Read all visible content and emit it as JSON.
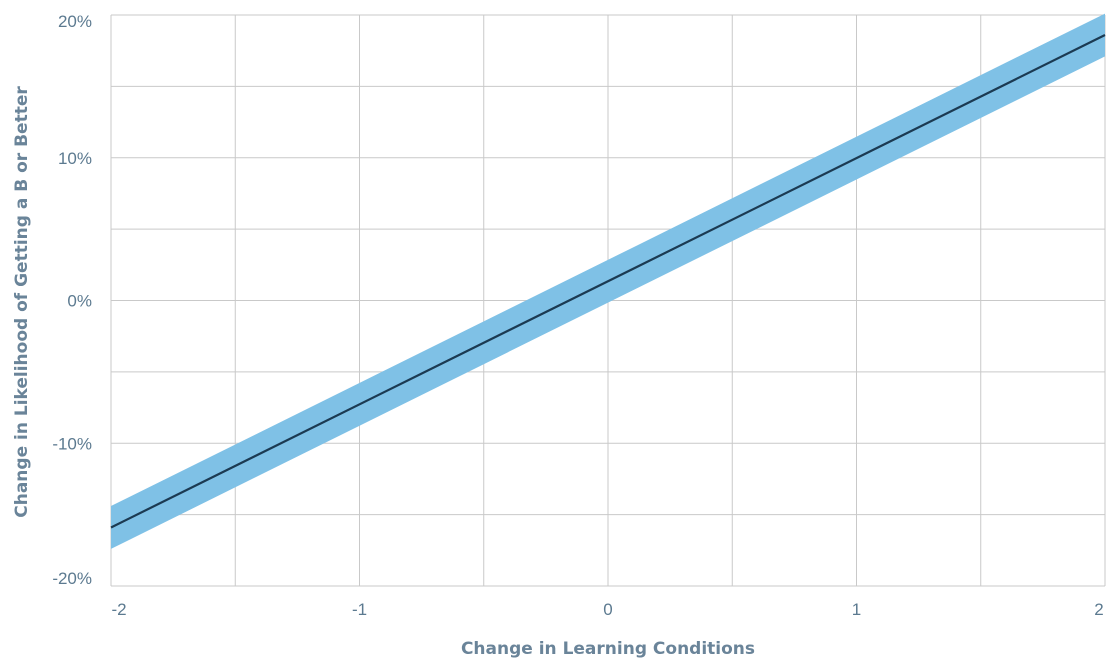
{
  "chart_data": {
    "type": "line",
    "title": "",
    "xlabel": "Change in Learning Conditions",
    "ylabel": "Change in Likelihood of Getting a B or Better",
    "xlim": [
      -2,
      2
    ],
    "ylim": [
      -20,
      20
    ],
    "x_ticks": [
      -2,
      -1.5,
      -1,
      -0.5,
      0,
      0.5,
      1,
      1.5,
      2
    ],
    "x_tick_labels": [
      "-2",
      "",
      "-1",
      "",
      "0",
      "",
      "1",
      "",
      "2"
    ],
    "y_ticks": [
      -20,
      -15,
      -10,
      -5,
      0,
      5,
      10,
      15,
      20
    ],
    "y_tick_labels": [
      "-20%",
      "",
      "-10%",
      "",
      "0%",
      "",
      "10%",
      "",
      "20%"
    ],
    "grid": true,
    "series": [
      {
        "x": [
          -2,
          2
        ],
        "y": [
          -15.9,
          18.6
        ],
        "ci_lower": [
          -17.4,
          17.1
        ],
        "ci_upper": [
          -14.4,
          20.1
        ]
      }
    ],
    "colors": {
      "line": "#1b3a52",
      "band": "#7fc1e6",
      "grid": "#c9c9c9",
      "text": "#5c7a90"
    }
  }
}
